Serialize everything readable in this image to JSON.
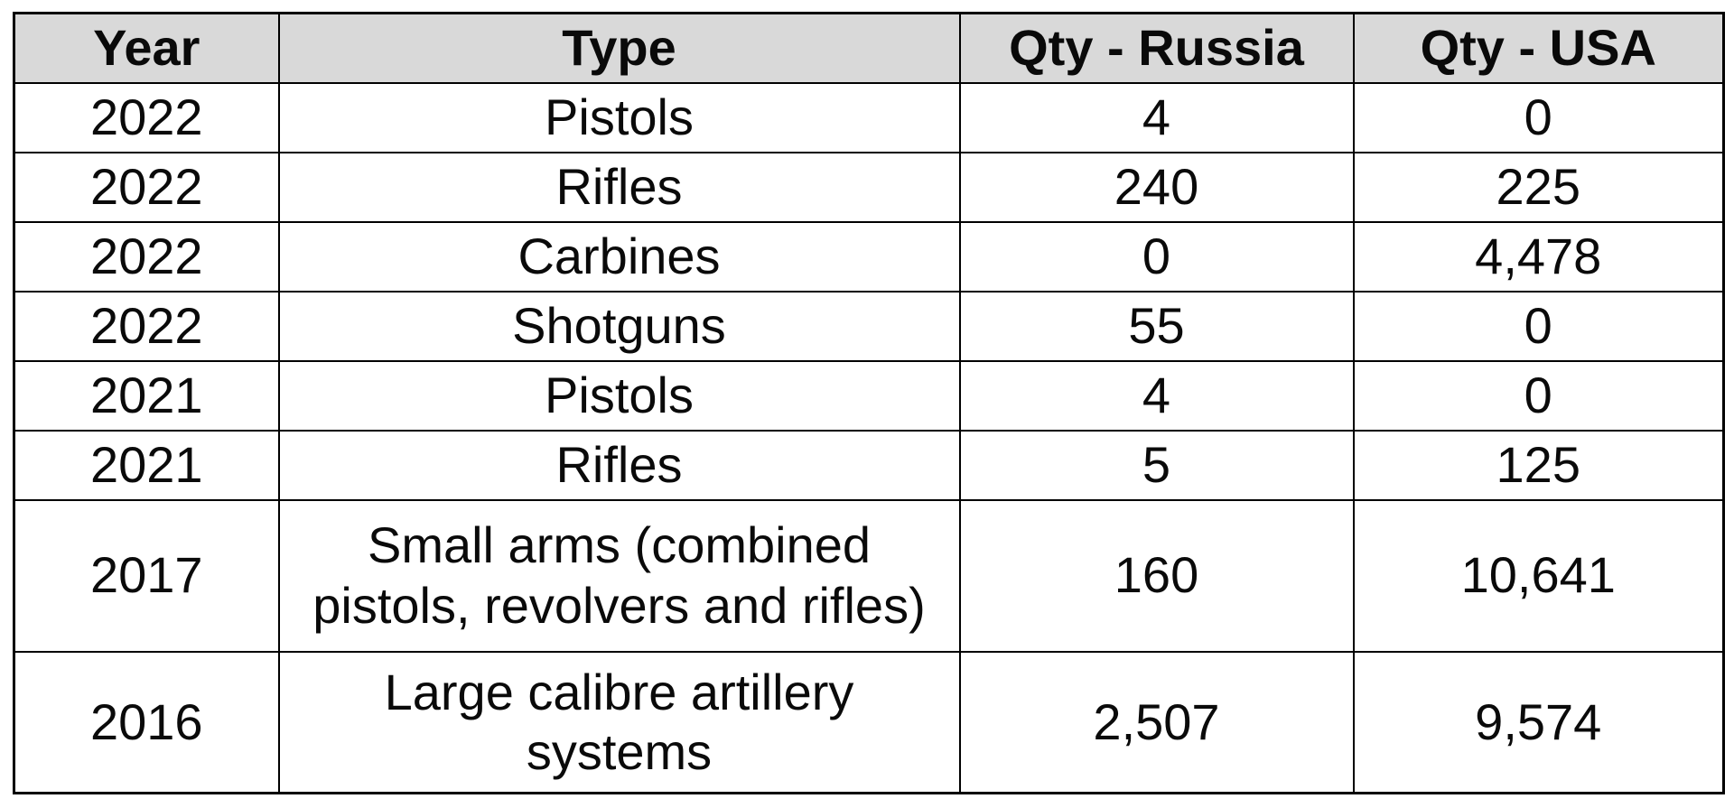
{
  "chart_data": {
    "type": "table",
    "columns": [
      "Year",
      "Type",
      "Qty - Russia",
      "Qty - USA"
    ],
    "rows": [
      [
        "2022",
        "Pistols",
        "4",
        "0"
      ],
      [
        "2022",
        "Rifles",
        "240",
        "225"
      ],
      [
        "2022",
        "Carbines",
        "0",
        "4,478"
      ],
      [
        "2022",
        "Shotguns",
        "55",
        "0"
      ],
      [
        "2021",
        "Pistols",
        "4",
        "0"
      ],
      [
        "2021",
        "Rifles",
        "5",
        "125"
      ],
      [
        "2017",
        "Small arms (combined pistols, revolvers and rifles)",
        "160",
        "10,641"
      ],
      [
        "2016",
        "Large calibre artillery systems",
        "2,507",
        "9,574"
      ]
    ]
  },
  "colors": {
    "header_bg": "#d9d9d9",
    "border": "#000000",
    "text": "#0a0a0a",
    "page_bg": "#ffffff"
  }
}
